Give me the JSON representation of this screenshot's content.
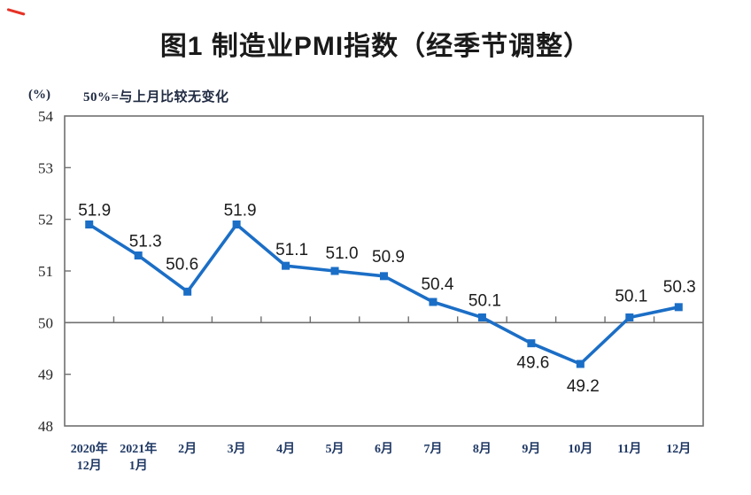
{
  "figure": {
    "title": "图1 制造业PMI指数（经季节调整）",
    "unit_label": "(%)",
    "reference_note": "50%=与上月比较无变化"
  },
  "chart_data": {
    "type": "line",
    "title": "图1 制造业PMI指数（经季节调整）",
    "ylabel": "(%)",
    "annotation": "50%=与上月比较无变化",
    "categories": [
      "2020年12月",
      "2021年1月",
      "2月",
      "3月",
      "4月",
      "5月",
      "6月",
      "7月",
      "8月",
      "9月",
      "10月",
      "11月",
      "12月"
    ],
    "category_label_lines": [
      [
        "2020年",
        "12月"
      ],
      [
        "2021年",
        "1月"
      ],
      [
        "2月"
      ],
      [
        "3月"
      ],
      [
        "4月"
      ],
      [
        "5月"
      ],
      [
        "6月"
      ],
      [
        "7月"
      ],
      [
        "8月"
      ],
      [
        "9月"
      ],
      [
        "10月"
      ],
      [
        "11月"
      ],
      [
        "12月"
      ]
    ],
    "series": [
      {
        "name": "制造业PMI指数",
        "values": [
          51.9,
          51.3,
          50.6,
          51.9,
          51.1,
          51.0,
          50.9,
          50.4,
          50.1,
          49.6,
          49.2,
          50.1,
          50.3
        ]
      }
    ],
    "point_labels": [
      "51.9",
      "51.3",
      "50.6",
      "51.9",
      "51.1",
      "51.0",
      "50.9",
      "50.4",
      "50.1",
      "49.6",
      "49.2",
      "50.1",
      "50.3"
    ],
    "point_label_positions": [
      "above",
      "above",
      "above",
      "above",
      "above",
      "above",
      "above",
      "above",
      "above",
      "below",
      "below",
      "above",
      "above"
    ],
    "ylim": [
      48,
      54
    ],
    "y_ticks": [
      48,
      49,
      50,
      51,
      52,
      53,
      54
    ],
    "reference_line_y": 50,
    "grid": "off",
    "legend": "none",
    "colors": {
      "line": "#1B6EC6",
      "marker": "#1B6EC6",
      "axis": "#707070",
      "point_label": "#1C1C1C",
      "x_tick_label": "#1F3864",
      "y_tick_label": "#262626",
      "corner_mark": "#E63226"
    }
  }
}
